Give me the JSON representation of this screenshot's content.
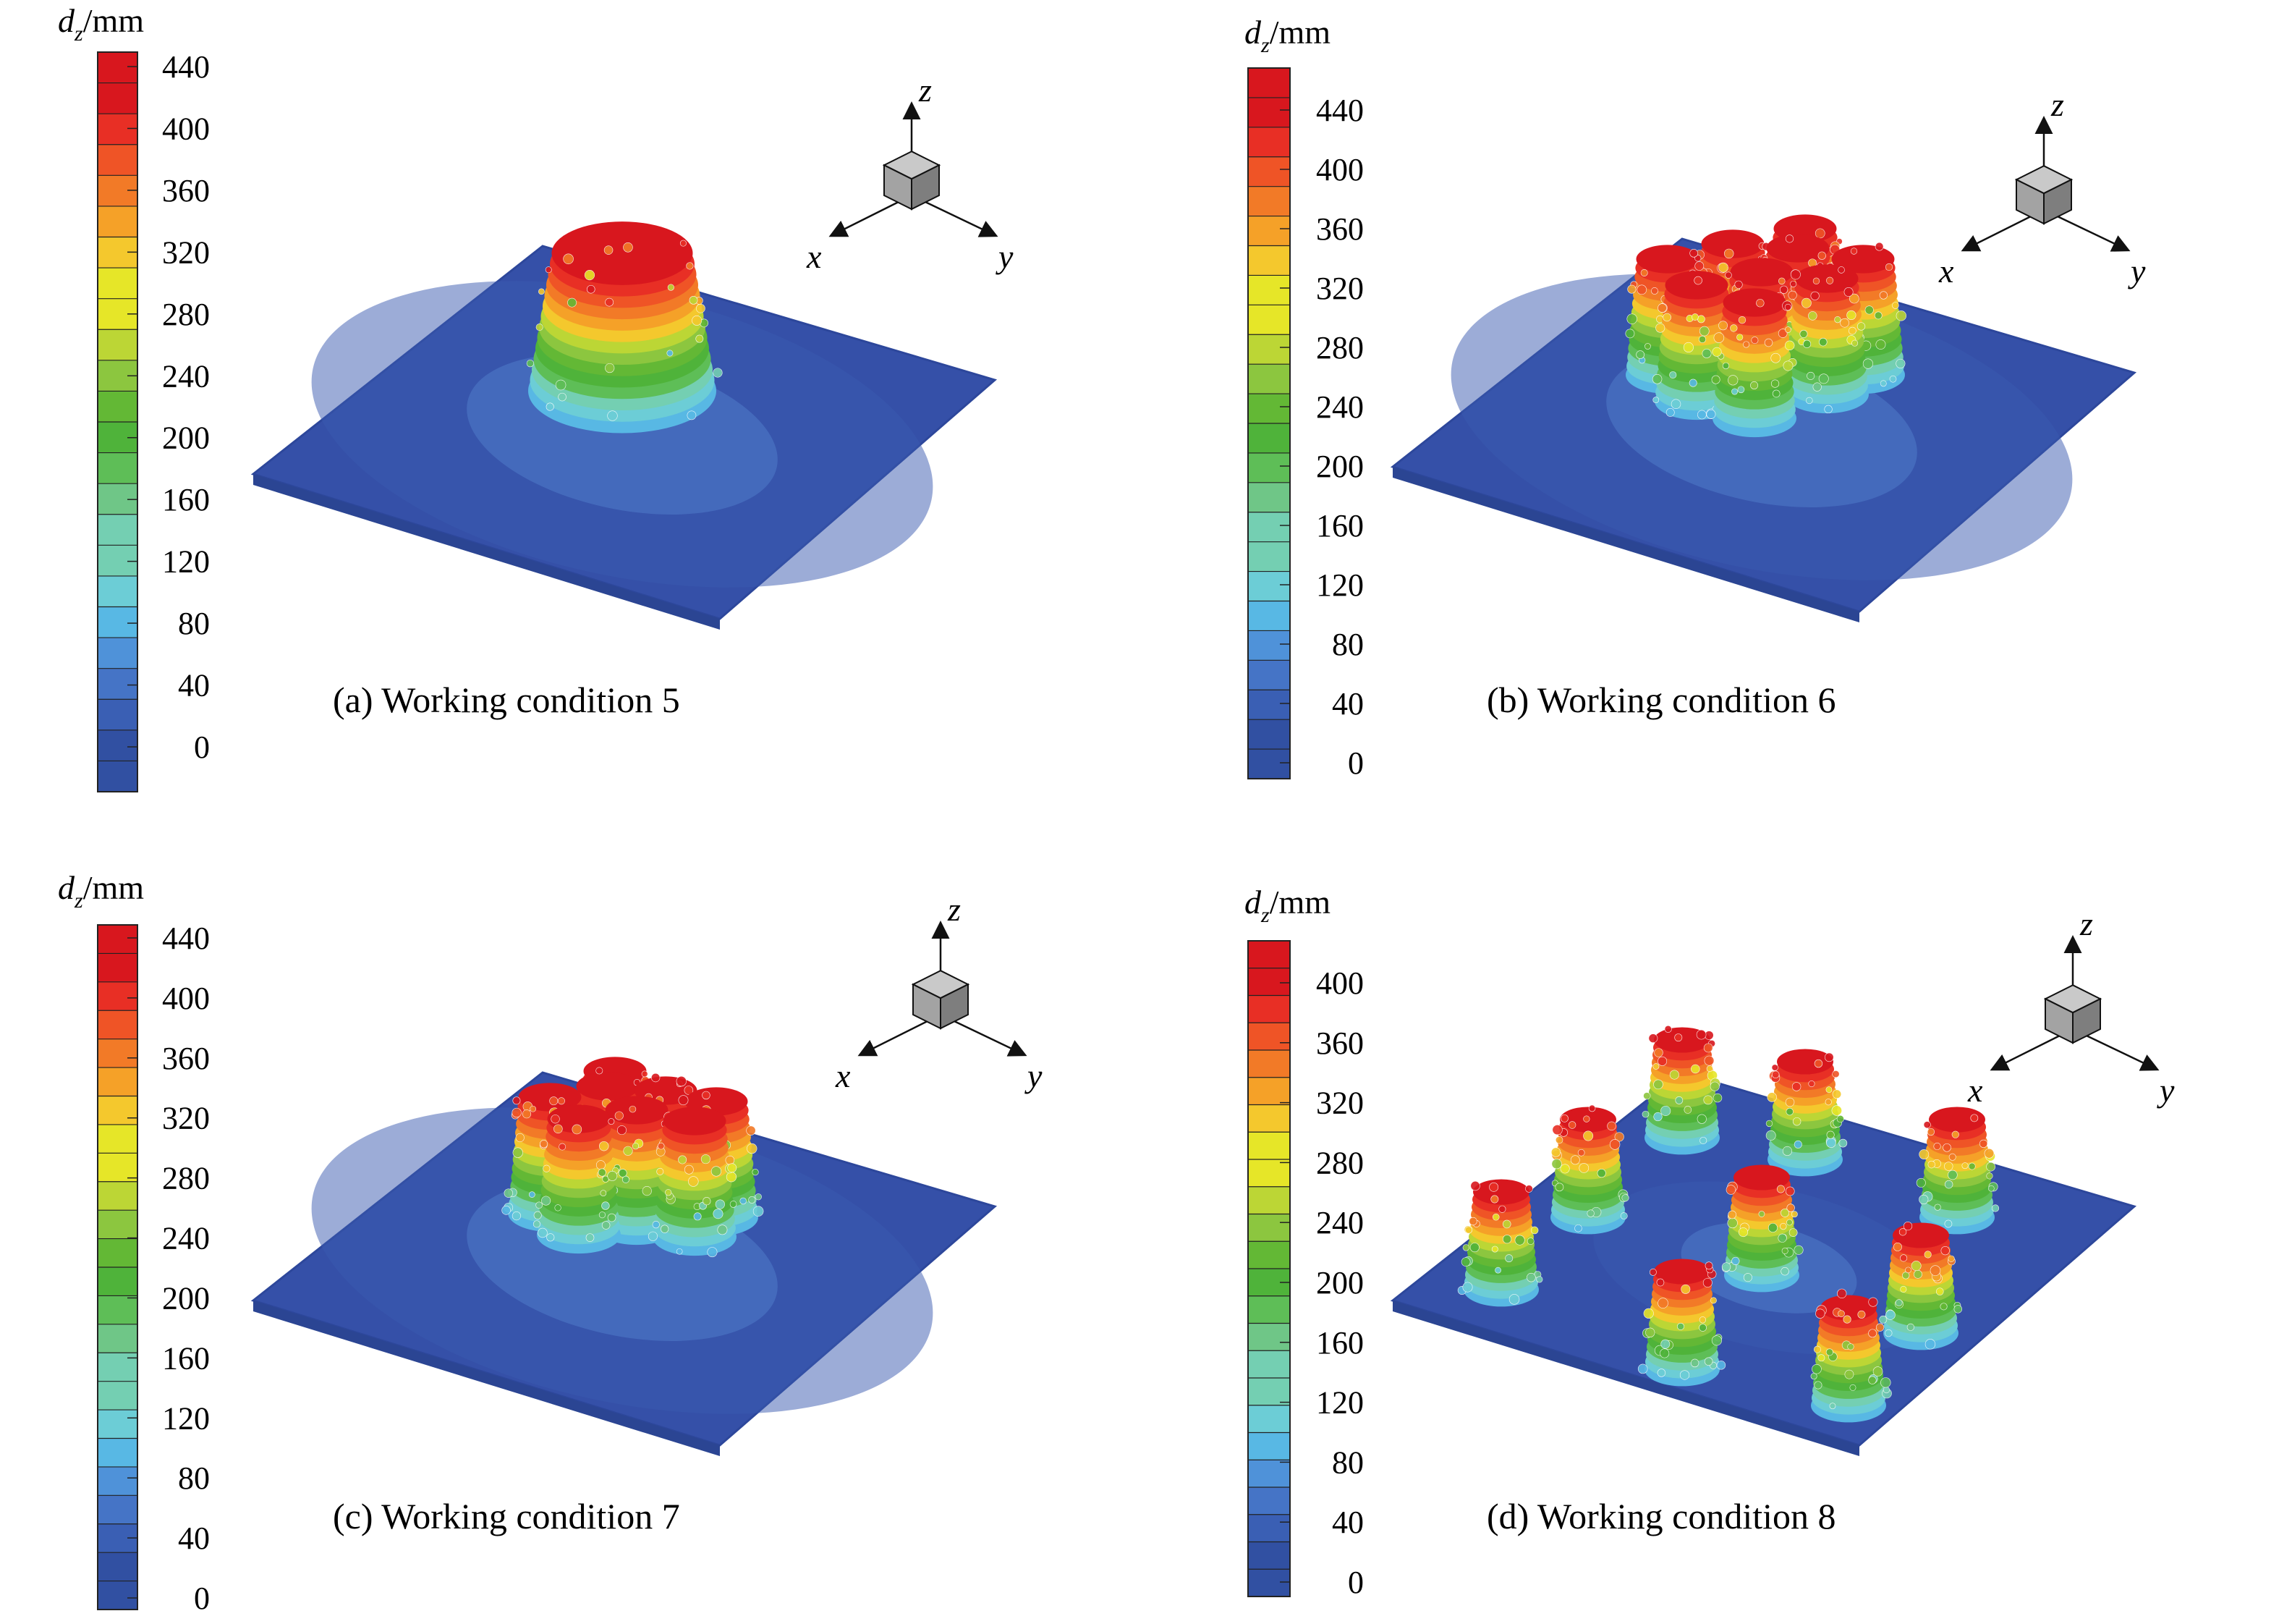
{
  "colormap": [
    "#3150a2",
    "#3a5fb4",
    "#4574c6",
    "#4f92d9",
    "#58b8e4",
    "#6ccdd6",
    "#74cfb2",
    "#6fc687",
    "#5ebe57",
    "#4fb33a",
    "#63b835",
    "#8cc63f",
    "#bcd635",
    "#e6e628",
    "#f4c82d",
    "#f5a128",
    "#f27a27",
    "#ef5426",
    "#e82f25",
    "#d8171e"
  ],
  "plate_color": "#3550a8",
  "panels": [
    {
      "id": "a",
      "caption": "(a) Working condition 5",
      "colorbar": {
        "label_var": "d",
        "label_sub": "z",
        "label_unit": "/mm",
        "ticks": [
          "440",
          "400",
          "360",
          "320",
          "280",
          "240",
          "200",
          "160",
          "120",
          "80",
          "40",
          "0"
        ]
      },
      "axes": {
        "x": "x",
        "y": "y",
        "z": "z"
      }
    },
    {
      "id": "b",
      "caption": "(b) Working condition 6",
      "colorbar": {
        "label_var": "d",
        "label_sub": "z",
        "label_unit": "/mm",
        "ticks": [
          "440",
          "400",
          "360",
          "320",
          "280",
          "240",
          "200",
          "160",
          "120",
          "80",
          "40",
          "0"
        ]
      },
      "axes": {
        "x": "x",
        "y": "y",
        "z": "z"
      }
    },
    {
      "id": "c",
      "caption": "(c) Working condition 7",
      "colorbar": {
        "label_var": "d",
        "label_sub": "z",
        "label_unit": "/mm",
        "ticks": [
          "440",
          "400",
          "360",
          "320",
          "280",
          "240",
          "200",
          "160",
          "120",
          "80",
          "40",
          "0"
        ]
      },
      "axes": {
        "x": "x",
        "y": "y",
        "z": "z"
      }
    },
    {
      "id": "d",
      "caption": "(d) Working condition 8",
      "colorbar": {
        "label_var": "d",
        "label_sub": "z",
        "label_unit": "/mm",
        "ticks": [
          "400",
          "360",
          "320",
          "280",
          "240",
          "200",
          "160",
          "120",
          "80",
          "40",
          "0"
        ]
      },
      "axes": {
        "x": "x",
        "y": "y",
        "z": "z"
      }
    }
  ]
}
